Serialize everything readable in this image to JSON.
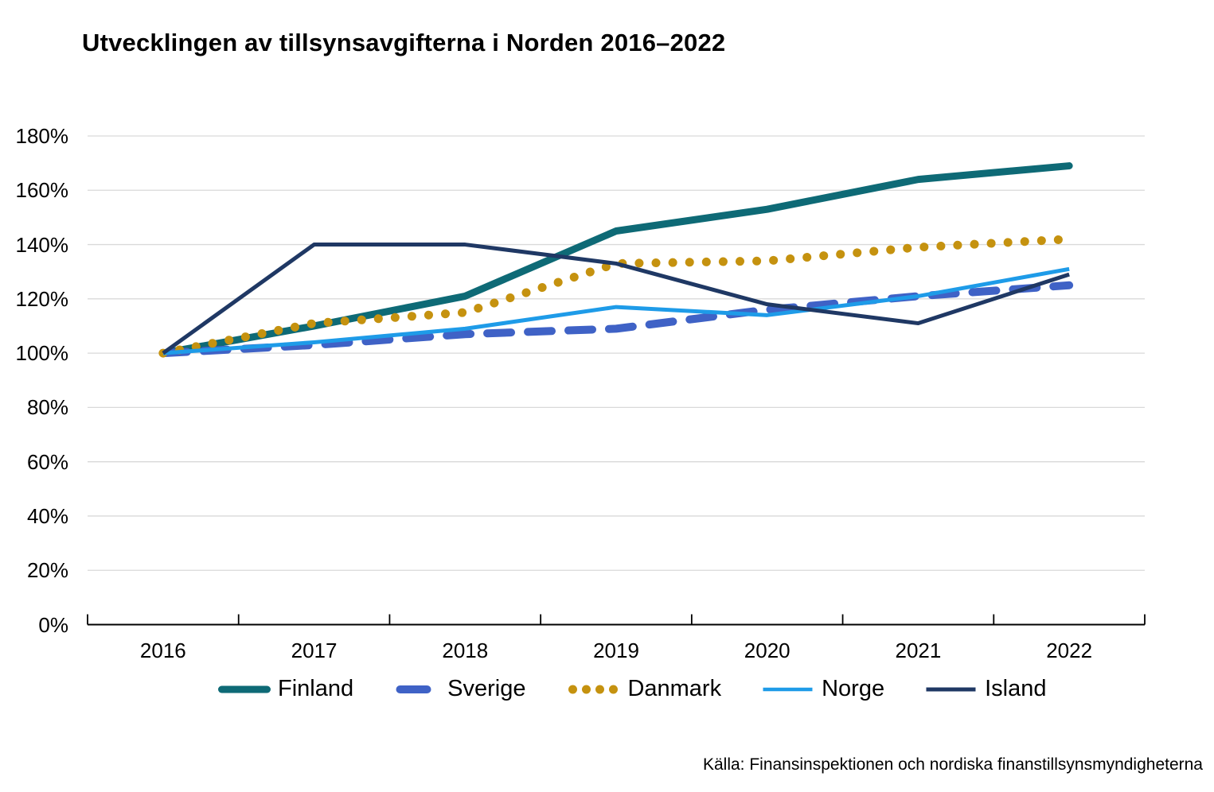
{
  "title": "Utvecklingen av tillsynsavgifterna i Norden 2016–2022",
  "source": "Källa: Finansinspektionen och nordiska finanstillsynsmyndigheterna",
  "chart_data": {
    "type": "line",
    "title": "Utvecklingen av tillsynsavgifterna i Norden 2016–2022",
    "x": [
      2016,
      2017,
      2018,
      2019,
      2020,
      2021,
      2022
    ],
    "xtick_labels": [
      "2016",
      "2017",
      "2018",
      "2019",
      "2020",
      "2021",
      "2022"
    ],
    "ytick_values": [
      180,
      160,
      140,
      120,
      100,
      80,
      60,
      40,
      20,
      0
    ],
    "ytick_labels": [
      "180%",
      "160%",
      "140%",
      "120%",
      "100%",
      "80%",
      "60%",
      "40%",
      "20%",
      "0%"
    ],
    "ylim": [
      0,
      180
    ],
    "grid": true,
    "legend_position": "bottom",
    "grid_color": "#D9D9D9",
    "axis_color": "#000000",
    "series": [
      {
        "id": "finland",
        "name": "Finland",
        "color": "#0E6A76",
        "width": 9,
        "dash": "",
        "linecap": "round",
        "values": [
          100,
          110,
          121,
          145,
          153,
          164,
          169
        ]
      },
      {
        "id": "sverige",
        "name": "Sverige",
        "color": "#3F62C6",
        "width": 10,
        "dash": "30 21",
        "linecap": "round",
        "values": [
          100,
          103,
          107,
          109,
          116,
          121,
          125
        ]
      },
      {
        "id": "danmark",
        "name": "Danmark",
        "color": "#C5920F",
        "width": 11,
        "dash": "0.1 21",
        "linecap": "round",
        "values": [
          100,
          111,
          115,
          133,
          134,
          139,
          142
        ]
      },
      {
        "id": "norge",
        "name": "Norge",
        "color": "#1E9BE8",
        "width": 5,
        "dash": "",
        "linecap": "butt",
        "values": [
          100,
          104,
          109,
          117,
          114,
          121,
          131
        ]
      },
      {
        "id": "island",
        "name": "Island",
        "color": "#1F3864",
        "width": 5,
        "dash": "",
        "linecap": "butt",
        "values": [
          100,
          140,
          140,
          133,
          118,
          111,
          129
        ]
      }
    ]
  }
}
